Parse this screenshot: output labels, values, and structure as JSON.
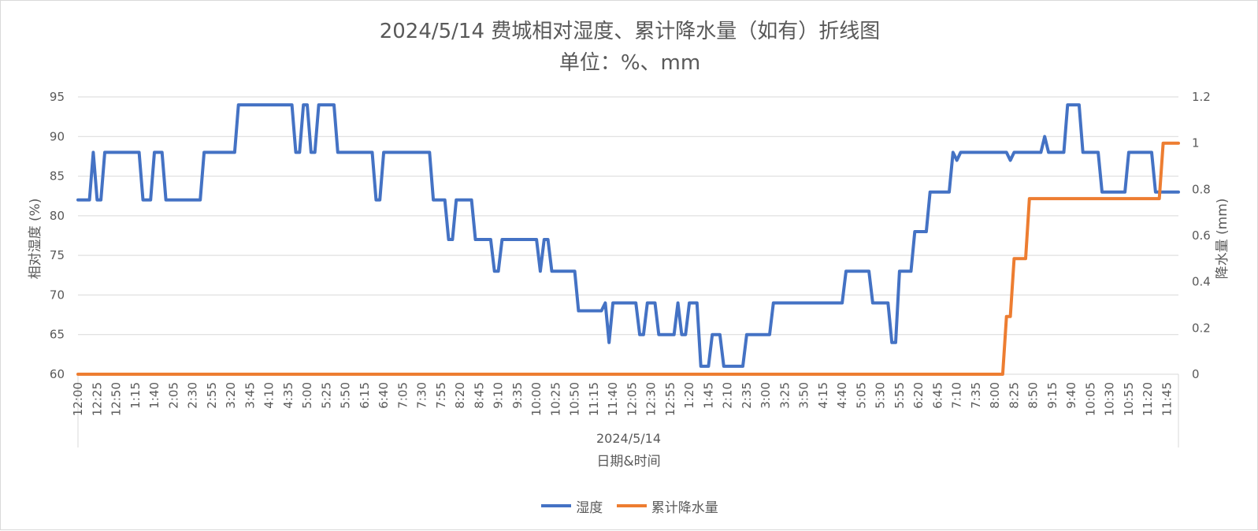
{
  "chart_data": {
    "type": "line",
    "title": "2024/5/14 费城相对湿度、累计降水量（如有）折线图",
    "subtitle": "单位：%、mm",
    "xlabel": "日期&时间",
    "x_group_label": "2024/5/14",
    "ylabel_left": "相对湿度 (%)",
    "ylabel_right": "降水量 (mm)",
    "ylim_left": [
      60,
      95
    ],
    "yticks_left": [
      60,
      65,
      70,
      75,
      80,
      85,
      90,
      95
    ],
    "ylim_right": [
      0,
      1.2
    ],
    "yticks_right": [
      "0",
      "0.2",
      "0.4",
      "0.6",
      "0.8",
      "1",
      "1.2"
    ],
    "grid": true,
    "legend_position": "bottom",
    "x_tick_labels": [
      "12:00",
      "12:25",
      "12:50",
      "1:15",
      "1:40",
      "2:05",
      "2:30",
      "2:55",
      "3:20",
      "3:45",
      "4:10",
      "4:35",
      "5:00",
      "5:25",
      "5:50",
      "6:15",
      "6:40",
      "7:05",
      "7:30",
      "7:55",
      "8:20",
      "8:45",
      "9:10",
      "9:35",
      "10:00",
      "10:25",
      "10:50",
      "11:15",
      "11:40",
      "12:05",
      "12:30",
      "12:55",
      "1:20",
      "1:45",
      "2:10",
      "2:35",
      "3:00",
      "3:25",
      "3:50",
      "4:15",
      "4:40",
      "5:05",
      "5:30",
      "5:55",
      "6:20",
      "6:45",
      "7:10",
      "7:35",
      "8:00",
      "8:25",
      "8:50",
      "9:15",
      "9:40",
      "10:05",
      "10:30",
      "10:55",
      "11:20",
      "11:45"
    ],
    "x_count": 288,
    "series": [
      {
        "name": "湿度",
        "axis": "left",
        "color": "#4472C4",
        "points": [
          [
            0,
            82
          ],
          [
            3,
            82
          ],
          [
            4,
            88
          ],
          [
            5,
            82
          ],
          [
            6,
            82
          ],
          [
            7,
            88
          ],
          [
            16,
            88
          ],
          [
            17,
            82
          ],
          [
            19,
            82
          ],
          [
            20,
            88
          ],
          [
            22,
            88
          ],
          [
            23,
            82
          ],
          [
            32,
            82
          ],
          [
            33,
            88
          ],
          [
            41,
            88
          ],
          [
            42,
            94
          ],
          [
            56,
            94
          ],
          [
            57,
            88
          ],
          [
            58,
            88
          ],
          [
            59,
            94
          ],
          [
            60,
            94
          ],
          [
            61,
            88
          ],
          [
            62,
            88
          ],
          [
            63,
            94
          ],
          [
            67,
            94
          ],
          [
            68,
            88
          ],
          [
            77,
            88
          ],
          [
            78,
            82
          ],
          [
            79,
            82
          ],
          [
            80,
            88
          ],
          [
            92,
            88
          ],
          [
            93,
            82
          ],
          [
            96,
            82
          ],
          [
            97,
            77
          ],
          [
            98,
            77
          ],
          [
            99,
            82
          ],
          [
            103,
            82
          ],
          [
            104,
            77
          ],
          [
            108,
            77
          ],
          [
            109,
            73
          ],
          [
            110,
            73
          ],
          [
            111,
            77
          ],
          [
            120,
            77
          ],
          [
            121,
            73
          ],
          [
            122,
            77
          ],
          [
            123,
            77
          ],
          [
            124,
            73
          ],
          [
            130,
            73
          ],
          [
            131,
            68
          ],
          [
            137,
            68
          ],
          [
            138,
            69
          ],
          [
            139,
            64
          ],
          [
            140,
            69
          ],
          [
            146,
            69
          ],
          [
            147,
            65
          ],
          [
            148,
            65
          ],
          [
            149,
            69
          ],
          [
            151,
            69
          ],
          [
            152,
            65
          ],
          [
            156,
            65
          ],
          [
            157,
            69
          ],
          [
            158,
            65
          ],
          [
            159,
            65
          ],
          [
            160,
            69
          ],
          [
            162,
            69
          ],
          [
            163,
            61
          ],
          [
            165,
            61
          ],
          [
            166,
            65
          ],
          [
            168,
            65
          ],
          [
            169,
            61
          ],
          [
            174,
            61
          ],
          [
            175,
            65
          ],
          [
            181,
            65
          ],
          [
            182,
            69
          ],
          [
            200,
            69
          ],
          [
            201,
            73
          ],
          [
            207,
            73
          ],
          [
            208,
            69
          ],
          [
            212,
            69
          ],
          [
            213,
            64
          ],
          [
            214,
            64
          ],
          [
            215,
            73
          ],
          [
            218,
            73
          ],
          [
            219,
            78
          ],
          [
            222,
            78
          ],
          [
            223,
            83
          ],
          [
            228,
            83
          ],
          [
            229,
            88
          ],
          [
            230,
            87
          ],
          [
            231,
            88
          ],
          [
            243,
            88
          ],
          [
            244,
            87
          ],
          [
            245,
            88
          ],
          [
            252,
            88
          ],
          [
            253,
            90
          ],
          [
            254,
            88
          ],
          [
            258,
            88
          ],
          [
            259,
            94
          ],
          [
            262,
            94
          ],
          [
            263,
            88
          ],
          [
            267,
            88
          ],
          [
            268,
            83
          ],
          [
            274,
            83
          ],
          [
            275,
            88
          ],
          [
            281,
            88
          ],
          [
            282,
            83
          ],
          [
            288,
            83
          ]
        ]
      },
      {
        "name": "累计降水量",
        "axis": "right",
        "color": "#ED7D31",
        "points": [
          [
            0,
            0
          ],
          [
            242,
            0
          ],
          [
            243,
            0.25
          ],
          [
            244,
            0.25
          ],
          [
            245,
            0.5
          ],
          [
            248,
            0.5
          ],
          [
            249,
            0.76
          ],
          [
            283,
            0.76
          ],
          [
            284,
            1
          ],
          [
            288,
            1
          ]
        ]
      }
    ]
  }
}
